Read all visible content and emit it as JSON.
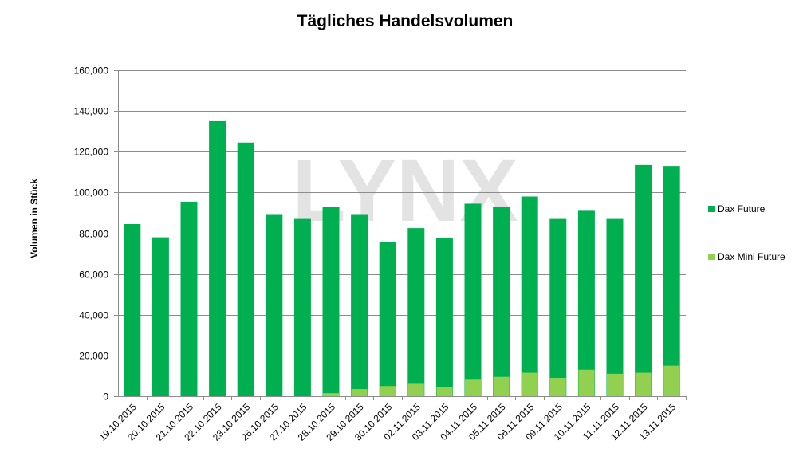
{
  "chart_data": {
    "type": "bar",
    "title": "Tägliches Handelsvolumen",
    "xlabel": "",
    "ylabel": "Volumen in Stück",
    "watermark": "LYNX",
    "ylim": [
      0,
      160000
    ],
    "yticks": [
      0,
      20000,
      40000,
      60000,
      80000,
      100000,
      120000,
      140000,
      160000
    ],
    "ytick_labels": [
      "0",
      "20,000",
      "40,000",
      "60,000",
      "80,000",
      "100,000",
      "120,000",
      "140,000",
      "160,000"
    ],
    "grid": true,
    "legend_position": "right",
    "categories": [
      "19.10.2015",
      "20.10.2015",
      "21.10.2015",
      "22.10.2015",
      "23.10.2015",
      "26.10.2015",
      "27.10.2015",
      "28.10.2015",
      "29.10.2015",
      "30.10.2015",
      "02.11.2015",
      "03.11.2015",
      "04.11.2015",
      "05.11.2015",
      "06.11.2015",
      "09.11.2015",
      "10.11.2015",
      "11.11.2015",
      "12.11.2015",
      "13.11.2015"
    ],
    "series": [
      {
        "name": "Dax Future",
        "color": "#00b050",
        "values": [
          84500,
          78000,
          95500,
          135000,
          124500,
          89000,
          87000,
          93000,
          89000,
          75500,
          82500,
          77500,
          94500,
          93000,
          98000,
          87000,
          91000,
          87000,
          113500,
          113000
        ]
      },
      {
        "name": "Dax Mini Future",
        "color": "#92d050",
        "values": [
          0,
          0,
          0,
          0,
          0,
          0,
          0,
          1500,
          3500,
          5000,
          6500,
          4500,
          8500,
          9500,
          11500,
          9000,
          13000,
          11000,
          11500,
          15000
        ]
      }
    ]
  }
}
